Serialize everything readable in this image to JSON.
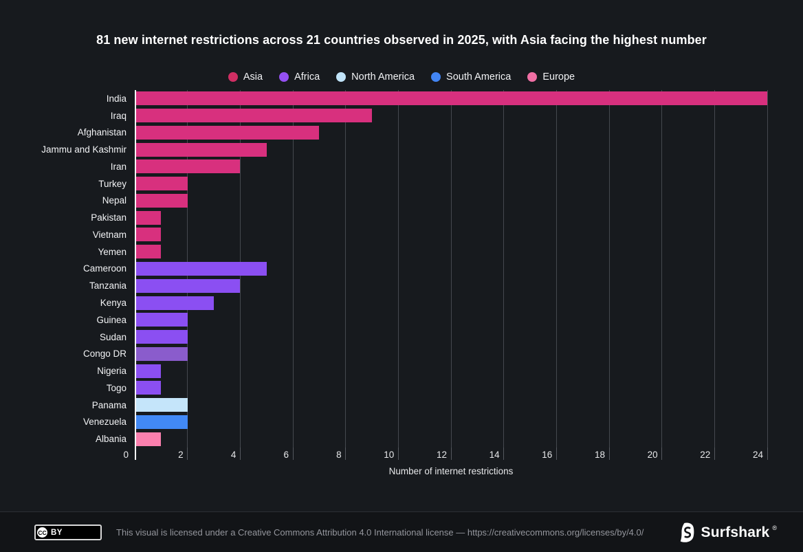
{
  "title": "81 new internet restrictions across 21 countries observed in 2025, with Asia facing the highest number",
  "legend": {
    "items": [
      {
        "label": "Asia",
        "color": "#d02e63"
      },
      {
        "label": "Africa",
        "color": "#9450f2"
      },
      {
        "label": "North America",
        "color": "#c0e3f8"
      },
      {
        "label": "South America",
        "color": "#4285f4"
      },
      {
        "label": "Europe",
        "color": "#f06fa4"
      }
    ]
  },
  "chart_data": {
    "type": "bar",
    "orientation": "horizontal",
    "title": "81 new internet restrictions across 21 countries observed in 2025, with Asia facing the highest number",
    "xlabel": "Number of internet restrictions",
    "xlim": [
      0,
      24
    ],
    "xticks": [
      0,
      2,
      4,
      6,
      8,
      10,
      12,
      14,
      16,
      18,
      20,
      22,
      24
    ],
    "grid": true,
    "legend_position": "top",
    "bars": [
      {
        "country": "India",
        "region": "Asia",
        "value": 24,
        "color": "#d8307e"
      },
      {
        "country": "Iraq",
        "region": "Asia",
        "value": 9,
        "color": "#d8307e"
      },
      {
        "country": "Afghanistan",
        "region": "Asia",
        "value": 7,
        "color": "#d8307e"
      },
      {
        "country": "Jammu and Kashmir",
        "region": "Asia",
        "value": 5,
        "color": "#d8307e"
      },
      {
        "country": "Iran",
        "region": "Asia",
        "value": 4,
        "color": "#d8307e"
      },
      {
        "country": "Turkey",
        "region": "Asia",
        "value": 2,
        "color": "#d8307e"
      },
      {
        "country": "Nepal",
        "region": "Asia",
        "value": 2,
        "color": "#d8307e"
      },
      {
        "country": "Pakistan",
        "region": "Asia",
        "value": 1,
        "color": "#d8307e"
      },
      {
        "country": "Vietnam",
        "region": "Asia",
        "value": 1,
        "color": "#d8307e"
      },
      {
        "country": "Yemen",
        "region": "Asia",
        "value": 1,
        "color": "#d8307e"
      },
      {
        "country": "Cameroon",
        "region": "Africa",
        "value": 5,
        "color": "#8b4ff2"
      },
      {
        "country": "Tanzania",
        "region": "Africa",
        "value": 4,
        "color": "#8b4ff2"
      },
      {
        "country": "Kenya",
        "region": "Africa",
        "value": 3,
        "color": "#8b4ff2"
      },
      {
        "country": "Guinea",
        "region": "Africa",
        "value": 2,
        "color": "#8b4ff2"
      },
      {
        "country": "Sudan",
        "region": "Africa",
        "value": 2,
        "color": "#8b4ff2"
      },
      {
        "country": "Congo DR",
        "region": "Africa",
        "value": 2,
        "color": "#8a5ccc"
      },
      {
        "country": "Nigeria",
        "region": "Africa",
        "value": 1,
        "color": "#8b4ff2"
      },
      {
        "country": "Togo",
        "region": "Africa",
        "value": 1,
        "color": "#8b4ff2"
      },
      {
        "country": "Panama",
        "region": "North America",
        "value": 2,
        "color": "#c5e5fa"
      },
      {
        "country": "Venezuela",
        "region": "South America",
        "value": 2,
        "color": "#4289f5"
      },
      {
        "country": "Albania",
        "region": "Europe",
        "value": 1,
        "color": "#fb80ae"
      }
    ]
  },
  "footer": {
    "badge": {
      "cc": "CC",
      "by": "BY"
    },
    "license_text": "This visual is licensed under a Creative Commons Attribution 4.0 International license — https://creativecommons.org/licenses/by/4.0/",
    "brand": "Surfshark",
    "registered_mark": "®"
  }
}
